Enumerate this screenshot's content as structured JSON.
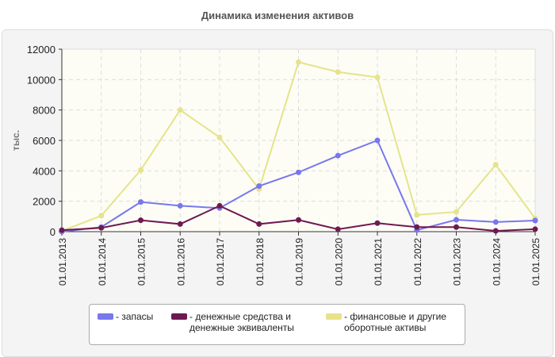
{
  "chart_data": {
    "type": "line",
    "title": "Динамика изменения активов",
    "ylabel": "тыс.",
    "xlabel": "",
    "ylim": [
      0,
      12000
    ],
    "yticks": [
      "0",
      "2000",
      "4000",
      "6000",
      "8000",
      "10000",
      "12000"
    ],
    "grid": true,
    "legend_position": "bottom",
    "categories": [
      "01.01.2013",
      "01.01.2014",
      "01.01.2015",
      "01.01.2016",
      "01.01.2017",
      "01.01.2018",
      "01.01.2019",
      "01.01.2020",
      "01.01.2021",
      "01.01.2022",
      "01.01.2023",
      "01.01.2024",
      "01.01.2025"
    ],
    "series": [
      {
        "name": "- запасы",
        "color": "#7777ee",
        "values": [
          0,
          300,
          1950,
          1700,
          1550,
          3000,
          3900,
          5000,
          6000,
          100,
          780,
          630,
          730
        ]
      },
      {
        "name": "- денежные средства и денежные эквиваленты",
        "color": "#6e1a50",
        "values": [
          100,
          250,
          750,
          500,
          1700,
          500,
          770,
          160,
          560,
          300,
          300,
          50,
          160
        ]
      },
      {
        "name": "- финансовые и другие оборотные активы",
        "color": "#e6e38a",
        "values": [
          50,
          1050,
          4050,
          8000,
          6200,
          2800,
          11150,
          10500,
          10150,
          1100,
          1300,
          4400,
          870
        ]
      }
    ]
  },
  "legend": {
    "l1": [
      "- запасы"
    ],
    "l2": [
      "- денежные средства и",
      "денежные эквиваленты"
    ],
    "l3": [
      "- финансовые и другие",
      "оборотные активы"
    ]
  }
}
